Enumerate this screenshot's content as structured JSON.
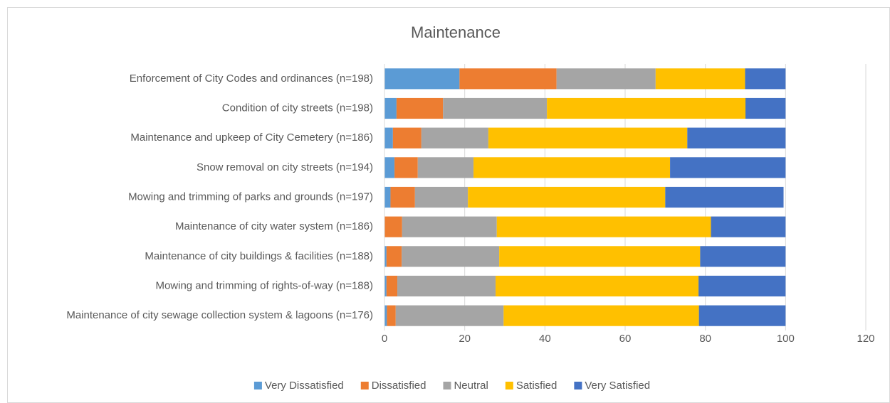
{
  "chart_data": {
    "type": "stacked_bar_horizontal",
    "title": "Maintenance",
    "categories": [
      "Enforcement of City Codes and ordinances (n=198)",
      "Condition of city streets (n=198)",
      "Maintenance and upkeep of City Cemetery (n=186)",
      "Snow removal on city streets (n=194)",
      "Mowing and trimming of parks and grounds (n=197)",
      "Maintenance of city water system (n=186)",
      "Maintenance of city buildings & facilities (n=188)",
      "Mowing and trimming of rights-of-way (n=188)",
      "Maintenance of city sewage collection system & lagoons (n=176)"
    ],
    "series": [
      {
        "name": "Very Dissatisfied",
        "color": "#5b9bd5",
        "values": [
          18.7,
          3.0,
          2.1,
          2.5,
          1.5,
          0,
          0.5,
          0.5,
          0.6
        ]
      },
      {
        "name": "Dissatisfied",
        "color": "#ed7d31",
        "values": [
          24.2,
          11.6,
          7.1,
          5.8,
          6.1,
          4.4,
          3.8,
          2.7,
          2.2
        ]
      },
      {
        "name": "Neutral",
        "color": "#a5a5a5",
        "values": [
          24.7,
          25.9,
          16.7,
          13.9,
          13.2,
          23.6,
          24.3,
          24.5,
          26.9
        ]
      },
      {
        "name": "Satisfied",
        "color": "#ffc000",
        "values": [
          22.3,
          49.5,
          49.6,
          49.0,
          49.2,
          53.4,
          50.1,
          50.6,
          48.7
        ]
      },
      {
        "name": "Very Satisfied",
        "color": "#4472c4",
        "values": [
          10.1,
          10.0,
          24.5,
          28.8,
          29.5,
          18.6,
          21.3,
          21.7,
          21.6
        ]
      }
    ],
    "xlim": [
      0,
      120
    ],
    "xticks": [
      0,
      20,
      40,
      60,
      80,
      100,
      120
    ],
    "grid": true,
    "legend": "bottom"
  }
}
